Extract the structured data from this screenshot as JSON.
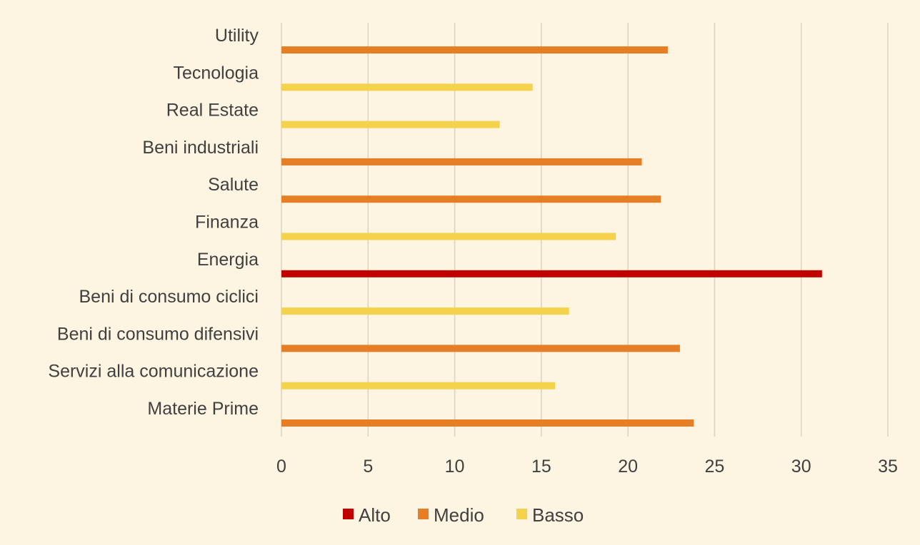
{
  "chart_data": {
    "type": "bar",
    "orientation": "horizontal",
    "title": "",
    "xlabel": "",
    "ylabel": "",
    "xlim": [
      0,
      35
    ],
    "x_ticks": [
      0,
      5,
      10,
      15,
      20,
      25,
      30,
      35
    ],
    "grid": "vertical",
    "legend_position": "bottom",
    "categories": [
      "Materie Prime",
      "Servizi alla comunicazione",
      "Beni di consumo difensivi",
      "Beni di consumo ciclici",
      "Energia",
      "Finanza",
      "Salute",
      "Beni industriali",
      "Real Estate",
      "Tecnologia",
      "Utility"
    ],
    "values": [
      23.8,
      15.8,
      23.0,
      16.6,
      31.2,
      19.3,
      21.9,
      20.8,
      12.6,
      14.5,
      22.3
    ],
    "levels": [
      "Medio",
      "Basso",
      "Medio",
      "Basso",
      "Alto",
      "Basso",
      "Medio",
      "Medio",
      "Basso",
      "Basso",
      "Medio"
    ],
    "legend": [
      {
        "name": "Alto",
        "color": "#c00000"
      },
      {
        "name": "Medio",
        "color": "#e57e25"
      },
      {
        "name": "Basso",
        "color": "#f4d24c"
      }
    ]
  }
}
